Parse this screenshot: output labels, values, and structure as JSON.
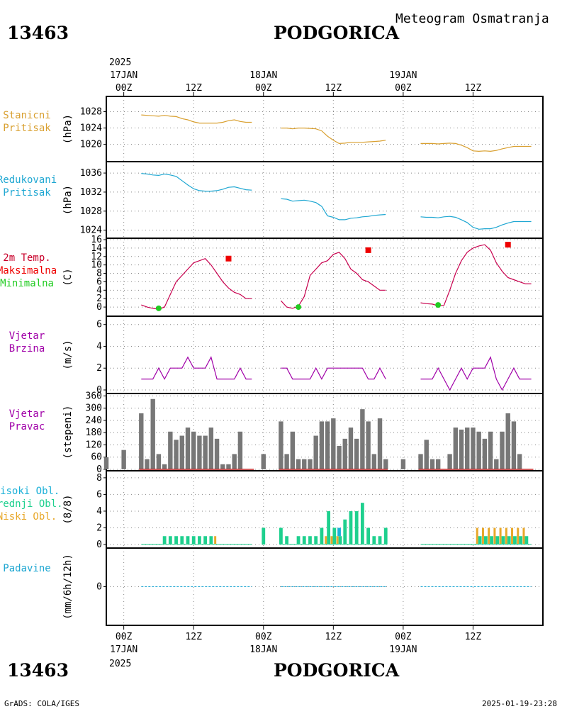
{
  "station_id": "13463",
  "station_name": "PODGORICA",
  "chart_title": "Meteogram Osmatranja",
  "footer_left": "GrADS: COLA/IGES",
  "footer_right": "2025-01-19-23:28",
  "top_axis": {
    "year": "2025",
    "dates": [
      "17JAN",
      "18JAN",
      "19JAN"
    ],
    "tick_labels": [
      "00Z",
      "12Z",
      "00Z",
      "12Z",
      "00Z",
      "12Z"
    ]
  },
  "bottom_axis": {
    "year": "2025",
    "dates": [
      "17JAN",
      "18JAN",
      "19JAN"
    ],
    "tick_labels": [
      "00Z",
      "12Z",
      "00Z",
      "12Z",
      "00Z",
      "12Z"
    ]
  },
  "colors": {
    "station_pressure": "#d9a030",
    "reduced_pressure": "#1fa7d2",
    "temp_title": "#c8002a",
    "temp_max": "#ee0000",
    "temp_min": "#22cc22",
    "wind": "#a000a8",
    "wind_dir_bar": "#777777",
    "wind_dir_base": "#bb2222",
    "high_cloud": "#1ab0d8",
    "mid_cloud": "#1ed08e",
    "low_cloud": "#e8a82a",
    "precip": "#1fa7d2"
  },
  "chart_data": [
    {
      "type": "line",
      "panel": "station_pressure",
      "label_lines": [
        "Stanicni",
        "Pritisak"
      ],
      "ylabel": "(hPa)",
      "yticks": [
        1020,
        1024,
        1028
      ],
      "ylim": [
        1017.5,
        1030
      ],
      "series": [
        {
          "x": [
            3,
            4,
            5,
            6,
            7,
            8,
            9,
            10,
            11,
            12,
            13,
            14,
            15,
            16,
            17,
            18,
            19,
            20,
            21,
            22,
            27,
            28,
            29,
            30,
            31,
            32,
            33,
            34,
            35,
            36,
            37,
            38,
            39,
            40,
            41,
            42,
            43,
            44,
            45,
            51,
            52,
            53,
            54,
            55,
            56,
            57,
            58,
            59,
            60,
            61,
            62,
            63,
            64,
            65,
            66,
            67,
            68,
            69,
            70
          ],
          "y": [
            1027.2,
            1027.1,
            1027.0,
            1026.9,
            1027.1,
            1026.9,
            1026.8,
            1026.3,
            1026.0,
            1025.5,
            1025.2,
            1025.2,
            1025.2,
            1025.2,
            1025.4,
            1025.8,
            1026.0,
            1025.6,
            1025.4,
            1025.4,
            1024.0,
            1024.0,
            1023.8,
            1024.0,
            1024.0,
            1023.9,
            1023.8,
            1023.3,
            1022.0,
            1021.0,
            1020.2,
            1020.3,
            1020.5,
            1020.5,
            1020.5,
            1020.6,
            1020.7,
            1020.8,
            1021.0,
            1020.2,
            1020.2,
            1020.2,
            1020.1,
            1020.2,
            1020.3,
            1020.2,
            1019.8,
            1019.2,
            1018.4,
            1018.3,
            1018.4,
            1018.3,
            1018.5,
            1018.9,
            1019.2,
            1019.5,
            1019.5,
            1019.5,
            1019.5
          ]
        }
      ]
    },
    {
      "type": "line",
      "panel": "reduced_pressure",
      "label_lines": [
        "Redukovani",
        "Pritisak"
      ],
      "ylabel": "(hPa)",
      "yticks": [
        1024,
        1028,
        1032,
        1036
      ],
      "ylim": [
        1023.2,
        1037.5
      ],
      "series": [
        {
          "x": [
            3,
            4,
            5,
            6,
            7,
            8,
            9,
            10,
            11,
            12,
            13,
            14,
            15,
            16,
            17,
            18,
            19,
            20,
            21,
            22,
            27,
            28,
            29,
            30,
            31,
            32,
            33,
            34,
            35,
            36,
            37,
            38,
            39,
            40,
            41,
            42,
            43,
            44,
            45,
            51,
            52,
            53,
            54,
            55,
            56,
            57,
            58,
            59,
            60,
            61,
            62,
            63,
            64,
            65,
            66,
            67,
            68,
            69,
            70
          ],
          "y": [
            1035.9,
            1035.8,
            1035.6,
            1035.5,
            1035.8,
            1035.6,
            1035.3,
            1034.4,
            1033.5,
            1032.7,
            1032.3,
            1032.2,
            1032.2,
            1032.3,
            1032.6,
            1033.0,
            1033.1,
            1032.8,
            1032.5,
            1032.4,
            1030.6,
            1030.5,
            1030.1,
            1030.2,
            1030.3,
            1030.1,
            1029.8,
            1029.0,
            1027.0,
            1026.7,
            1026.2,
            1026.2,
            1026.5,
            1026.6,
            1026.8,
            1026.9,
            1027.1,
            1027.2,
            1027.3,
            1026.8,
            1026.7,
            1026.7,
            1026.6,
            1026.8,
            1026.9,
            1026.7,
            1026.2,
            1025.6,
            1024.6,
            1024.2,
            1024.3,
            1024.3,
            1024.6,
            1025.1,
            1025.5,
            1025.8,
            1025.8,
            1025.8,
            1025.8
          ]
        }
      ]
    },
    {
      "type": "line",
      "panel": "temperature",
      "label_lines": [
        "2m Temp.",
        "Maksimalna",
        "Minimalna"
      ],
      "ylabel": "(C)",
      "yticks": [
        0,
        2,
        4,
        6,
        8,
        10,
        12,
        14,
        16
      ],
      "ylim": [
        -1.5,
        16
      ],
      "series": [
        {
          "x": [
            3,
            4,
            5,
            6,
            7,
            8,
            9,
            10,
            11,
            12,
            13,
            14,
            15,
            16,
            17,
            18,
            19,
            20,
            21,
            22,
            27,
            28,
            29,
            30,
            31,
            32,
            33,
            34,
            35,
            36,
            37,
            38,
            39,
            40,
            41,
            42,
            43,
            44,
            45,
            51,
            52,
            53,
            54,
            55,
            56,
            57,
            58,
            59,
            60,
            61,
            62,
            63,
            64,
            65,
            66,
            67,
            68,
            69,
            70
          ],
          "y": [
            0.5,
            0.0,
            -0.3,
            -0.5,
            0.0,
            3.0,
            6.0,
            7.5,
            9.0,
            10.5,
            11.0,
            11.5,
            10.0,
            8.0,
            6.0,
            4.5,
            3.5,
            3.0,
            2.0,
            2.0,
            1.5,
            0.0,
            -0.3,
            0.2,
            2.5,
            7.5,
            9.0,
            10.5,
            11.0,
            12.5,
            13.0,
            11.5,
            9.0,
            8.0,
            6.5,
            6.0,
            5.0,
            4.0,
            4.0,
            1.0,
            0.8,
            0.7,
            0.3,
            0.4,
            4.0,
            8.0,
            11.0,
            13.0,
            14.0,
            14.5,
            14.8,
            13.5,
            10.5,
            8.5,
            7.0,
            6.5,
            6.0,
            5.5,
            5.5
          ]
        }
      ],
      "max_points": {
        "x": [
          18,
          42,
          66
        ],
        "y": [
          11.5,
          13.5,
          14.8
        ]
      },
      "min_points": {
        "x": [
          6,
          30,
          54
        ],
        "y": [
          -0.3,
          0.0,
          0.5
        ]
      }
    },
    {
      "type": "line",
      "panel": "wind_speed",
      "label_lines": [
        "Vjetar",
        "Brzina"
      ],
      "ylabel": "(m/s)",
      "yticks": [
        0,
        2,
        4,
        6
      ],
      "ylim": [
        0,
        6.5
      ],
      "series": [
        {
          "x": [
            3,
            4,
            5,
            6,
            7,
            8,
            9,
            10,
            11,
            12,
            13,
            14,
            15,
            16,
            17,
            18,
            19,
            20,
            21,
            22,
            27,
            28,
            29,
            30,
            31,
            32,
            33,
            34,
            35,
            36,
            37,
            38,
            39,
            40,
            41,
            42,
            43,
            44,
            45,
            51,
            52,
            53,
            54,
            55,
            56,
            57,
            58,
            59,
            60,
            61,
            62,
            63,
            64,
            65,
            66,
            67,
            68,
            69,
            70
          ],
          "y": [
            1,
            1,
            1,
            2,
            1,
            2,
            2,
            2,
            3,
            2,
            2,
            2,
            3,
            1,
            1,
            1,
            1,
            2,
            1,
            1,
            2,
            2,
            1,
            1,
            1,
            1,
            2,
            1,
            2,
            2,
            2,
            2,
            2,
            2,
            2,
            1,
            1,
            2,
            1,
            1,
            1,
            1,
            2,
            1,
            0,
            1,
            2,
            1,
            2,
            2,
            2,
            3,
            1,
            0,
            1,
            2,
            1,
            1,
            1
          ]
        }
      ]
    },
    {
      "type": "bar",
      "panel": "wind_direction",
      "label_lines": [
        "Vjetar",
        "Pravac"
      ],
      "ylabel": "(stepeni)",
      "yticks": [
        0,
        60,
        120,
        180,
        240,
        300,
        360
      ],
      "ylim": [
        0,
        365
      ],
      "x": [
        -3,
        0,
        3,
        4,
        5,
        6,
        7,
        8,
        9,
        10,
        11,
        12,
        13,
        14,
        15,
        16,
        17,
        18,
        19,
        20,
        21,
        22,
        24,
        27,
        28,
        29,
        30,
        31,
        32,
        33,
        34,
        35,
        36,
        37,
        38,
        39,
        40,
        41,
        42,
        43,
        44,
        45,
        48,
        51,
        52,
        53,
        54,
        55,
        56,
        57,
        58,
        59,
        60,
        61,
        62,
        63,
        64,
        65,
        66,
        67,
        68,
        69,
        70
      ],
      "values": [
        60,
        95,
        275,
        50,
        345,
        75,
        25,
        185,
        145,
        165,
        205,
        185,
        165,
        165,
        205,
        150,
        25,
        25,
        75,
        185,
        0,
        0,
        75,
        235,
        75,
        185,
        50,
        50,
        50,
        165,
        235,
        235,
        250,
        115,
        150,
        205,
        150,
        295,
        235,
        75,
        250,
        50,
        50,
        75,
        145,
        50,
        50,
        0,
        75,
        205,
        195,
        205,
        205,
        185,
        150,
        185,
        50,
        185,
        275,
        235,
        75,
        0,
        0
      ]
    },
    {
      "type": "bar",
      "panel": "clouds",
      "label_lines": [
        "Visoki Obl.",
        "Srednji Obl.",
        "Niski Obl."
      ],
      "ylabel": "(8/8)",
      "yticks": [
        0,
        2,
        4,
        6,
        8
      ],
      "ylim": [
        0,
        8.5
      ],
      "x": [
        7,
        8,
        9,
        10,
        11,
        12,
        13,
        14,
        15,
        16,
        24,
        27,
        28,
        30,
        31,
        32,
        33,
        34,
        35,
        36,
        37,
        38,
        39,
        40,
        41,
        42,
        43,
        44,
        45,
        61,
        62,
        63,
        64,
        65,
        66,
        67,
        68,
        69
      ],
      "series": [
        {
          "name": "Visoki Obl.",
          "values": [
            0,
            0,
            0,
            0,
            0,
            0,
            0,
            0,
            0,
            0,
            0,
            0,
            0,
            0,
            0,
            0,
            0,
            0,
            2,
            2,
            2,
            0,
            0,
            0,
            0,
            0,
            0,
            0,
            2,
            0,
            0,
            0,
            0,
            0,
            0,
            0,
            0,
            0
          ]
        },
        {
          "name": "Srednji Obl.",
          "values": [
            1,
            1,
            1,
            1,
            1,
            1,
            1,
            1,
            1,
            0,
            2,
            2,
            1,
            1,
            1,
            1,
            1,
            2,
            4,
            2,
            1,
            3,
            4,
            4,
            5,
            2,
            1,
            1,
            2,
            1,
            1,
            1,
            1,
            1,
            1,
            1,
            1,
            1
          ]
        },
        {
          "name": "Niski Obl.",
          "values": [
            0,
            0,
            0,
            0,
            0,
            0,
            0,
            0,
            0,
            1,
            0,
            0,
            0,
            0,
            0,
            0,
            0,
            0,
            1,
            1,
            1,
            0,
            0,
            0,
            0,
            0,
            0,
            0,
            0,
            2,
            2,
            2,
            2,
            2,
            2,
            2,
            2,
            2
          ]
        }
      ]
    },
    {
      "type": "line",
      "panel": "precipitation",
      "label_lines": [
        "Padavine"
      ],
      "ylabel": "(mm/6h/12h)",
      "yticks": [
        0
      ],
      "ylim": [
        -5,
        5
      ],
      "series": [
        {
          "x": [
            3,
            4,
            5,
            6,
            7,
            8,
            9,
            10,
            11,
            12,
            13,
            14,
            15,
            16,
            17,
            18,
            19,
            20,
            21,
            22,
            27,
            28,
            29,
            30,
            31,
            32,
            33,
            34,
            35,
            36,
            37,
            38,
            39,
            40,
            41,
            42,
            43,
            44,
            45,
            51,
            52,
            53,
            54,
            55,
            56,
            57,
            58,
            59,
            60,
            61,
            62,
            63,
            64,
            65,
            66,
            67,
            68,
            69,
            70
          ],
          "y": [
            0,
            0,
            0,
            0,
            0,
            0,
            0,
            0,
            0,
            0,
            0,
            0,
            0,
            0,
            0,
            0,
            0,
            0,
            0,
            0,
            0,
            0,
            0,
            0,
            0,
            0,
            0,
            0,
            0,
            0,
            0,
            0,
            0,
            0,
            0,
            0,
            0,
            0,
            0,
            0,
            0,
            0,
            0,
            0,
            0,
            0,
            0,
            0,
            0,
            0,
            0,
            0,
            0,
            0,
            0,
            0,
            0,
            0,
            0
          ]
        }
      ]
    }
  ]
}
